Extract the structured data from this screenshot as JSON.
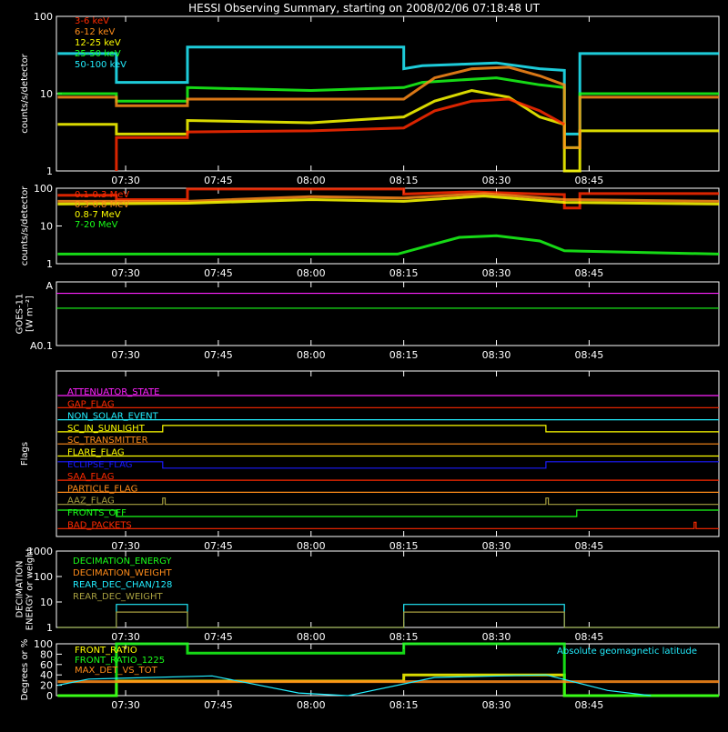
{
  "title": "HESSI Observing Summary, starting on 2008/02/06 07:18:48 UT",
  "time_ticks": [
    "07:30",
    "07:45",
    "08:00",
    "08:15",
    "08:30",
    "08:45"
  ],
  "time_tick_minutes": [
    30,
    45,
    60,
    75,
    90,
    105
  ],
  "x_range_minutes": [
    18.8,
    126.0
  ],
  "colors": {
    "background": "#000000",
    "axis": "#ffffff",
    "red": "#ff2a00",
    "orange": "#ff8c1a",
    "yellow": "#ffff00",
    "green": "#1aff1a",
    "cyan": "#22eeff",
    "magenta": "#ff22ff",
    "blue": "#1a1aff",
    "olive": "#a8a040"
  },
  "chart_data": [
    {
      "type": "line",
      "name": "low-energy-rates",
      "ylabel": "counts/s/detector",
      "ylim": [
        1,
        100
      ],
      "log": true,
      "yticks": [
        "1",
        "10",
        "100"
      ],
      "legend": [
        "3-6 keV",
        "6-12 keV",
        "12-25 keV",
        "25-50 keV",
        "50-100 keV"
      ],
      "legend_colors": [
        "red",
        "orange",
        "yellow",
        "green",
        "cyan"
      ],
      "series": [
        {
          "name": "50-100 keV",
          "color": "cyan",
          "x": [
            19,
            28.5,
            28.5,
            40,
            40,
            75,
            75,
            78,
            84,
            90,
            97,
            101,
            101,
            103.5,
            103.5,
            126
          ],
          "values": [
            33,
            33,
            14,
            14,
            40,
            40,
            21,
            23,
            24,
            25,
            21,
            20,
            3,
            3,
            33,
            33
          ]
        },
        {
          "name": "25-50 keV",
          "color": "green",
          "x": [
            19,
            28.5,
            28.5,
            40,
            40,
            60,
            75,
            78,
            84,
            90,
            97,
            101,
            101,
            103.5,
            103.5,
            126
          ],
          "values": [
            10,
            10,
            8,
            8,
            12,
            11,
            12,
            14,
            15,
            16,
            13,
            12,
            2,
            2,
            10,
            10
          ]
        },
        {
          "name": "12-25 keV",
          "color": "yellow",
          "x": [
            19,
            28.5,
            28.5,
            40,
            40,
            60,
            75,
            80,
            86,
            92,
            97,
            101,
            101,
            103.5,
            103.5,
            126
          ],
          "values": [
            4,
            4,
            3,
            3,
            4.5,
            4.2,
            5,
            8,
            11,
            9,
            5,
            4,
            1,
            1,
            3.3,
            3.3
          ]
        },
        {
          "name": "6-12 keV",
          "color": "orange",
          "x": [
            19,
            28.5,
            28.5,
            40,
            40,
            75,
            80,
            86,
            92,
            97,
            101,
            101,
            103.5,
            103.5,
            126
          ],
          "values": [
            9,
            9,
            7,
            7,
            8.5,
            8.5,
            16,
            21,
            22,
            17,
            13,
            2,
            2,
            9,
            9
          ]
        },
        {
          "name": "3-6 keV",
          "color": "red",
          "x": [
            28.5,
            28.5,
            40,
            40,
            60,
            75,
            80,
            86,
            92,
            97,
            101
          ],
          "values": [
            1,
            2.7,
            2.7,
            3.2,
            3.3,
            3.6,
            6,
            8,
            8.5,
            6,
            4
          ]
        }
      ]
    },
    {
      "type": "line",
      "name": "high-energy-rates",
      "ylabel": "counts/s/detector",
      "ylim": [
        1,
        100
      ],
      "log": true,
      "yticks": [
        "1",
        "10",
        "100"
      ],
      "legend": [
        "0.1-0.3 MeV",
        "0.3-0.8 MeV",
        "0.8-7 MeV",
        "7-20 MeV"
      ],
      "legend_colors": [
        "red",
        "orange",
        "yellow",
        "green"
      ],
      "series": [
        {
          "name": "0.1-0.3 MeV",
          "color": "red",
          "x": [
            19,
            28.5,
            28.5,
            40,
            40,
            75,
            75,
            86,
            97,
            101,
            101,
            103.5,
            103.5,
            126
          ],
          "values": [
            65,
            65,
            50,
            50,
            95,
            95,
            70,
            80,
            70,
            68,
            30,
            30,
            72,
            72
          ]
        },
        {
          "name": "0.3-0.8 MeV",
          "color": "orange",
          "x": [
            19,
            40,
            60,
            75,
            88,
            101,
            126
          ],
          "values": [
            45,
            45,
            60,
            55,
            72,
            50,
            45
          ]
        },
        {
          "name": "0.8-7 MeV",
          "color": "yellow",
          "x": [
            19,
            40,
            60,
            75,
            88,
            101,
            126
          ],
          "values": [
            38,
            40,
            50,
            45,
            62,
            42,
            38
          ]
        },
        {
          "name": "7-20 MeV",
          "color": "green",
          "x": [
            19,
            40,
            60,
            74,
            79,
            84,
            90,
            97,
            101,
            126
          ],
          "values": [
            1.8,
            1.8,
            1.8,
            1.8,
            3,
            5,
            5.5,
            4,
            2.2,
            1.8
          ]
        }
      ]
    },
    {
      "type": "line",
      "name": "goes",
      "ylabel": "GOES-11 [W m⁻²]",
      "yticks": [
        "A",
        "A0.1"
      ],
      "series": [
        {
          "name": "GOES long",
          "color": "magenta",
          "level": 0.12
        },
        {
          "name": "GOES short",
          "color": "green",
          "level": 0.38
        }
      ]
    },
    {
      "type": "line",
      "name": "flags",
      "ylabel": "Flags",
      "rows": [
        {
          "label": "ATTENUATOR_STATE",
          "color": "magenta",
          "x": [
            19,
            126
          ],
          "values": [
            0,
            0
          ]
        },
        {
          "label": "GAP_FLAG",
          "color": "red",
          "x": [
            19,
            126
          ],
          "values": [
            0,
            0
          ]
        },
        {
          "label": "NON_SOLAR_EVENT",
          "color": "cyan",
          "x": [
            19,
            126
          ],
          "values": [
            0,
            0
          ]
        },
        {
          "label": "SC_IN_SUNLIGHT",
          "color": "yellow",
          "x": [
            19,
            36,
            36,
            98,
            98,
            126
          ],
          "values": [
            0,
            0,
            1,
            1,
            0,
            0
          ]
        },
        {
          "label": "SC_TRANSMITTER",
          "color": "orange",
          "x": [
            19,
            126
          ],
          "values": [
            0,
            0
          ]
        },
        {
          "label": "FLARE_FLAG",
          "color": "yellow",
          "x": [
            19,
            126
          ],
          "values": [
            0,
            0
          ]
        },
        {
          "label": "ECLIPSE_FLAG",
          "color": "blue",
          "x": [
            19,
            36,
            36,
            98,
            98,
            126
          ],
          "values": [
            1,
            1,
            0,
            0,
            1,
            1
          ]
        },
        {
          "label": "SAA_FLAG",
          "color": "red",
          "x": [
            19,
            126
          ],
          "values": [
            0,
            0
          ]
        },
        {
          "label": "PARTICLE_FLAG",
          "color": "orange",
          "x": [
            19,
            126
          ],
          "values": [
            0,
            0
          ]
        },
        {
          "label": "AAZ_FLAG",
          "color": "olive",
          "x": [
            19,
            36,
            36,
            36.4,
            36.4,
            98,
            98,
            98.4,
            98.4,
            126
          ],
          "values": [
            0,
            0,
            1,
            1,
            0,
            0,
            1,
            1,
            0,
            0
          ]
        },
        {
          "label": "FRONTS_OFF",
          "color": "green",
          "x": [
            19,
            28.5,
            28.5,
            103,
            103,
            126
          ],
          "values": [
            1,
            1,
            0,
            0,
            1,
            1
          ]
        },
        {
          "label": "BAD_PACKETS",
          "color": "red",
          "x": [
            19,
            122,
            122,
            122.3,
            122.3,
            126
          ],
          "values": [
            0,
            0,
            1,
            1,
            0,
            0
          ]
        }
      ]
    },
    {
      "type": "line",
      "name": "decimation",
      "ylabel": "DECIMATION ENERGY or weight",
      "ylim": [
        1,
        1000
      ],
      "log": true,
      "yticks": [
        "1",
        "10",
        "100",
        "1000"
      ],
      "legend": [
        "DECIMATION_ENERGY",
        "DECIMATION_WEIGHT",
        "REAR_DEC_CHAN/128",
        "REAR_DEC_WEIGHT"
      ],
      "legend_colors": [
        "green",
        "orange",
        "cyan",
        "olive"
      ],
      "series": [
        {
          "name": "REAR_DEC_CHAN/128",
          "color": "cyan",
          "x": [
            19,
            28.5,
            28.5,
            40,
            40,
            75,
            75,
            101,
            101,
            126
          ],
          "values": [
            1,
            1,
            8,
            8,
            1,
            1,
            8,
            8,
            1,
            1
          ]
        },
        {
          "name": "REAR_DEC_WEIGHT",
          "color": "olive",
          "x": [
            19,
            28.5,
            28.5,
            40,
            40,
            75,
            75,
            101,
            101,
            126
          ],
          "values": [
            1,
            1,
            4,
            4,
            1,
            1,
            4,
            4,
            1,
            1
          ]
        }
      ]
    },
    {
      "type": "line",
      "name": "front-ratio",
      "ylabel": "Degrees or %",
      "ylim": [
        0,
        100
      ],
      "yticks": [
        "0",
        "20",
        "40",
        "60",
        "80",
        "100"
      ],
      "legend": [
        "FRONT_RATIO",
        "FRONT_RATIO_1225",
        "MAX_DET_VS_TOT"
      ],
      "legend_colors": [
        "yellow",
        "green",
        "orange"
      ],
      "annotation": "Absolute geomagnetic latitude",
      "series": [
        {
          "name": "FRONT_RATIO",
          "color": "yellow",
          "x": [
            19,
            28.5,
            28.5,
            75,
            75,
            101,
            101,
            126
          ],
          "values": [
            0,
            0,
            28,
            28,
            40,
            40,
            0,
            0
          ]
        },
        {
          "name": "FRONT_RATIO_1225",
          "color": "green",
          "x": [
            19,
            28.5,
            28.5,
            40,
            40,
            75,
            75,
            101,
            101,
            126
          ],
          "values": [
            0,
            0,
            100,
            100,
            82,
            82,
            100,
            100,
            0,
            0
          ]
        },
        {
          "name": "MAX_DET_VS_TOT",
          "color": "orange",
          "x": [
            19,
            126
          ],
          "values": [
            27,
            27
          ]
        },
        {
          "name": "Absolute geomagnetic latitude",
          "color": "cyan",
          "x": [
            19,
            24,
            44,
            58,
            66,
            80,
            98,
            108,
            115
          ],
          "values": [
            20,
            32,
            38,
            5,
            0,
            35,
            40,
            10,
            0
          ]
        }
      ]
    }
  ]
}
